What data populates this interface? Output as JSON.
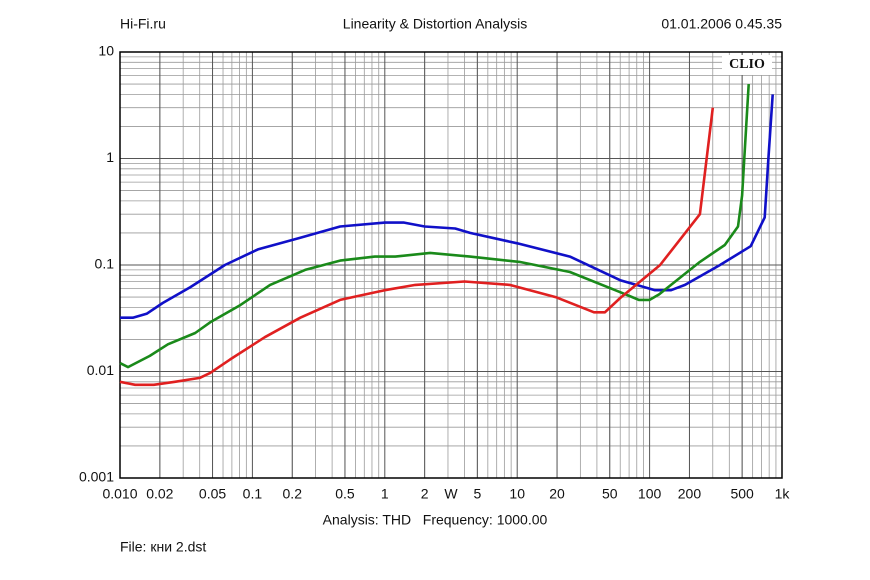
{
  "chart_data": {
    "type": "line",
    "header_left": "Hi-Fi.ru",
    "title": "Linearity & Distortion Analysis",
    "header_right": "01.01.2006 0.45.35",
    "watermark": "CLIO",
    "xlabel": "W",
    "analysis": "Analysis: THD   Frequency: 1000.00",
    "file": "File: кни 2.dst",
    "xscale": "log",
    "yscale": "log",
    "xlim": [
      0.01,
      1000
    ],
    "ylim": [
      0.001,
      10
    ],
    "xticks": [
      {
        "value": 0.01,
        "label": "0.010"
      },
      0.02,
      0.05,
      0.1,
      0.2,
      0.5,
      1,
      2,
      5,
      10,
      20,
      50,
      100,
      200,
      500,
      {
        "value": 1000,
        "label": "1k"
      }
    ],
    "yticks": [
      0.001,
      0.01,
      0.1,
      1,
      10
    ],
    "grid": true,
    "minor_grid": true,
    "series": [
      {
        "color": "#1010c8",
        "x": [
          0.01,
          0.0125,
          0.016,
          0.021,
          0.034,
          0.062,
          0.11,
          0.23,
          0.46,
          1,
          1.4,
          2,
          3.4,
          4.4,
          10,
          25,
          60,
          110,
          145,
          185,
          340,
          580,
          740,
          790,
          850
        ],
        "values": [
          0.032,
          0.032,
          0.035,
          0.044,
          0.062,
          0.1,
          0.14,
          0.18,
          0.23,
          0.25,
          0.25,
          0.23,
          0.22,
          0.2,
          0.16,
          0.12,
          0.072,
          0.058,
          0.058,
          0.065,
          0.1,
          0.15,
          0.28,
          1,
          4
        ]
      },
      {
        "color": "#1a8a1a",
        "x": [
          0.01,
          0.0115,
          0.0168,
          0.023,
          0.037,
          0.048,
          0.081,
          0.136,
          0.25,
          0.46,
          0.84,
          1.2,
          2.2,
          4.4,
          10.4,
          25,
          59,
          83,
          100,
          118,
          240,
          370,
          465,
          500,
          560
        ],
        "values": [
          0.012,
          0.011,
          0.014,
          0.018,
          0.023,
          0.029,
          0.042,
          0.065,
          0.09,
          0.11,
          0.12,
          0.12,
          0.13,
          0.12,
          0.107,
          0.086,
          0.056,
          0.047,
          0.047,
          0.053,
          0.107,
          0.154,
          0.23,
          0.45,
          5
        ]
      },
      {
        "color": "#e02020",
        "x": [
          0.01,
          0.013,
          0.018,
          0.026,
          0.04,
          0.048,
          0.068,
          0.124,
          0.23,
          0.46,
          1,
          1.7,
          4,
          8.8,
          19.5,
          38,
          46,
          60,
          120,
          240,
          300
        ],
        "values": [
          0.008,
          0.0075,
          0.0075,
          0.008,
          0.0087,
          0.0097,
          0.013,
          0.021,
          0.032,
          0.047,
          0.058,
          0.065,
          0.07,
          0.065,
          0.05,
          0.036,
          0.036,
          0.049,
          0.1,
          0.3,
          3
        ]
      }
    ]
  }
}
